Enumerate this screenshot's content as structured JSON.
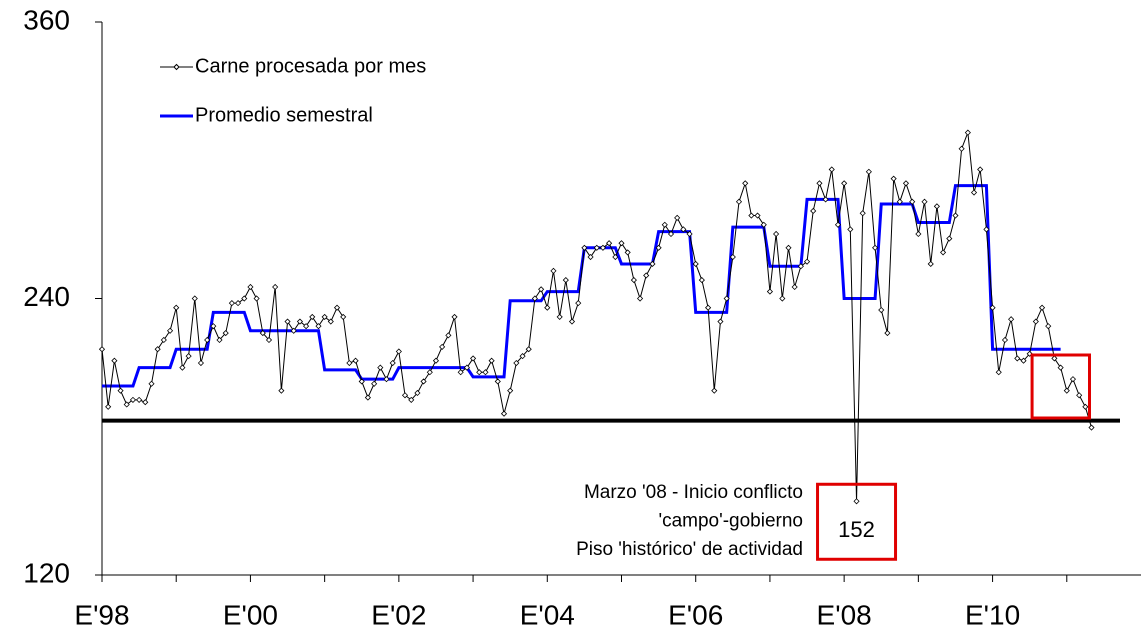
{
  "chart_data": {
    "type": "line",
    "x": [
      1998.0,
      1998.083,
      1998.167,
      1998.25,
      1998.333,
      1998.417,
      1998.5,
      1998.583,
      1998.667,
      1998.75,
      1998.833,
      1998.917,
      1999.0,
      1999.083,
      1999.167,
      1999.25,
      1999.333,
      1999.417,
      1999.5,
      1999.583,
      1999.667,
      1999.75,
      1999.833,
      1999.917,
      2000.0,
      2000.083,
      2000.167,
      2000.25,
      2000.333,
      2000.417,
      2000.5,
      2000.583,
      2000.667,
      2000.75,
      2000.833,
      2000.917,
      2001.0,
      2001.083,
      2001.167,
      2001.25,
      2001.333,
      2001.417,
      2001.5,
      2001.583,
      2001.667,
      2001.75,
      2001.833,
      2001.917,
      2002.0,
      2002.083,
      2002.167,
      2002.25,
      2002.333,
      2002.417,
      2002.5,
      2002.583,
      2002.667,
      2002.75,
      2002.833,
      2002.917,
      2003.0,
      2003.083,
      2003.167,
      2003.25,
      2003.333,
      2003.417,
      2003.5,
      2003.583,
      2003.667,
      2003.75,
      2003.833,
      2003.917,
      2004.0,
      2004.083,
      2004.167,
      2004.25,
      2004.333,
      2004.417,
      2004.5,
      2004.583,
      2004.667,
      2004.75,
      2004.833,
      2004.917,
      2005.0,
      2005.083,
      2005.167,
      2005.25,
      2005.333,
      2005.417,
      2005.5,
      2005.583,
      2005.667,
      2005.75,
      2005.833,
      2005.917,
      2006.0,
      2006.083,
      2006.167,
      2006.25,
      2006.333,
      2006.417,
      2006.5,
      2006.583,
      2006.667,
      2006.75,
      2006.833,
      2006.917,
      2007.0,
      2007.083,
      2007.167,
      2007.25,
      2007.333,
      2007.417,
      2007.5,
      2007.583,
      2007.667,
      2007.75,
      2007.833,
      2007.917,
      2008.0,
      2008.083,
      2008.167,
      2008.25,
      2008.333,
      2008.417,
      2008.5,
      2008.583,
      2008.667,
      2008.75,
      2008.833,
      2008.917,
      2009.0,
      2009.083,
      2009.167,
      2009.25,
      2009.333,
      2009.417,
      2009.5,
      2009.583,
      2009.667,
      2009.75,
      2009.833,
      2009.917,
      2010.0,
      2010.083,
      2010.167,
      2010.25,
      2010.333,
      2010.417,
      2010.5,
      2010.583,
      2010.667,
      2010.75,
      2010.833,
      2010.917,
      2011.0,
      2011.083,
      2011.167,
      2011.25,
      2011.333
    ],
    "series": [
      {
        "name": "Carne procesada por mes",
        "color": "#000000",
        "marker": "diamond",
        "values": [
          218,
          193,
          213,
          200,
          194,
          196,
          196,
          195,
          203,
          218,
          222,
          226,
          236,
          210,
          215,
          240,
          212,
          222,
          228,
          222,
          225,
          238,
          238,
          240,
          245,
          240,
          225,
          222,
          245,
          200,
          230,
          226,
          230,
          228,
          232,
          228,
          232,
          230,
          236,
          232,
          212,
          213,
          204,
          197,
          203,
          210,
          205,
          212,
          217,
          198,
          196,
          199,
          204,
          208,
          213,
          219,
          224,
          232,
          208,
          210,
          214,
          208,
          208,
          213,
          204,
          190,
          200,
          212,
          215,
          218,
          240,
          244,
          236,
          252,
          232,
          248,
          230,
          238,
          262,
          258,
          262,
          262,
          264,
          258,
          264,
          260,
          248,
          240,
          250,
          255,
          262,
          272,
          268,
          275,
          270,
          268,
          255,
          248,
          236,
          200,
          230,
          240,
          258,
          282,
          290,
          276,
          276,
          272,
          243,
          268,
          240,
          262,
          245,
          254,
          256,
          278,
          290,
          283,
          296,
          272,
          290,
          270,
          152,
          277,
          295,
          262,
          235,
          225,
          292,
          282,
          290,
          282,
          268,
          282,
          255,
          280,
          260,
          266,
          276,
          305,
          312,
          286,
          296,
          270,
          236,
          208,
          222,
          231,
          214,
          213,
          216,
          230,
          236,
          228,
          214,
          210,
          200,
          205,
          198,
          193,
          184
        ]
      },
      {
        "name": "Promedio semestral",
        "color": "#0000ff",
        "values": [
          202,
          202,
          202,
          202,
          202,
          202,
          210,
          210,
          210,
          210,
          210,
          210,
          218,
          218,
          218,
          218,
          218,
          218,
          234,
          234,
          234,
          234,
          234,
          234,
          226,
          226,
          226,
          226,
          226,
          226,
          226,
          226,
          226,
          226,
          226,
          226,
          209,
          209,
          209,
          209,
          209,
          209,
          205,
          205,
          205,
          205,
          205,
          205,
          210,
          210,
          210,
          210,
          210,
          210,
          210,
          210,
          210,
          210,
          210,
          210,
          206,
          206,
          206,
          206,
          206,
          206,
          239,
          239,
          239,
          239,
          239,
          239,
          243,
          243,
          243,
          243,
          243,
          243,
          262,
          262,
          262,
          262,
          262,
          262,
          255,
          255,
          255,
          255,
          255,
          255,
          269,
          269,
          269,
          269,
          269,
          269,
          234,
          234,
          234,
          234,
          234,
          234,
          271,
          271,
          271,
          271,
          271,
          271,
          254,
          254,
          254,
          254,
          254,
          254,
          283,
          283,
          283,
          283,
          283,
          283,
          240,
          240,
          240,
          240,
          240,
          240,
          281,
          281,
          281,
          281,
          281,
          281,
          273,
          273,
          273,
          273,
          273,
          273,
          289,
          289,
          289,
          289,
          289,
          289,
          218,
          218,
          218,
          218,
          218,
          218,
          218,
          218,
          218,
          218,
          218,
          218,
          null,
          null,
          null,
          null,
          null
        ]
      }
    ],
    "xlim": [
      1998,
      2012
    ],
    "xticks": [
      {
        "value": 1998,
        "label": "E'98"
      },
      {
        "value": 2000,
        "label": "E'00"
      },
      {
        "value": 2002,
        "label": "E'02"
      },
      {
        "value": 2004,
        "label": "E'04"
      },
      {
        "value": 2006,
        "label": "E'06"
      },
      {
        "value": 2008,
        "label": "E'08"
      },
      {
        "value": 2010,
        "label": "E'10"
      }
    ],
    "xminor_ticks": [
      1999,
      2001,
      2003,
      2005,
      2007,
      2009,
      2011
    ],
    "ylim": [
      120,
      360
    ],
    "yticks": [
      120,
      240,
      360
    ],
    "reference_line": {
      "value": 187,
      "color": "#000000"
    },
    "annotation": {
      "lines": [
        "Marzo '08 - Inicio conflicto",
        "'campo'-gobierno",
        "Piso 'histórico' de actividad"
      ],
      "label": "152",
      "series": 0,
      "index": 122,
      "color": "#e00000"
    },
    "highlight_box": {
      "from_index": 152,
      "to_index": 160,
      "color": "#e00000"
    },
    "legend": "top-left"
  }
}
